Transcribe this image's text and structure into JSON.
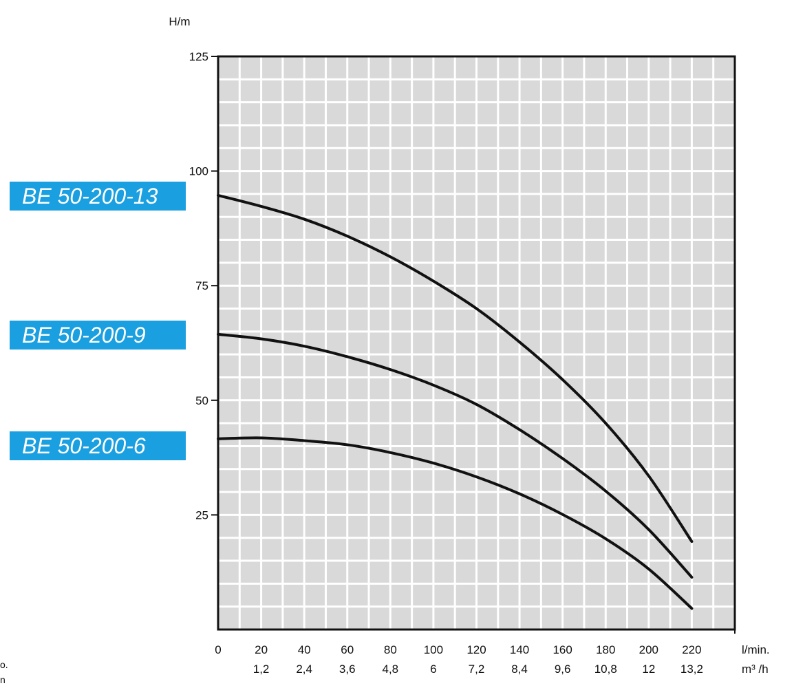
{
  "chart_data": {
    "type": "line",
    "ylabel": "H/m",
    "xlabel": "l/min.",
    "xlabel2": "m³ /h",
    "x_ticks": [
      0,
      20,
      40,
      60,
      80,
      100,
      120,
      140,
      160,
      180,
      200,
      220
    ],
    "x_ticks_labels": [
      "0",
      "20",
      "40",
      "60",
      "80",
      "100",
      "120",
      "140",
      "160",
      "180",
      "200",
      "220"
    ],
    "x2_ticks_labels": [
      "",
      "1,2",
      "2,4",
      "3,6",
      "4,8",
      "6",
      "7,2",
      "8,4",
      "9,6",
      "10,8",
      "12",
      "13,2"
    ],
    "y_ticks": [
      25,
      50,
      75,
      100,
      125
    ],
    "y_ticks_labels": [
      "25",
      "50",
      "75",
      "100",
      "125"
    ],
    "xlim": [
      0,
      240
    ],
    "ylim": [
      0,
      125
    ],
    "grid": true,
    "series": [
      {
        "name": "BE 50-200-13",
        "x": [
          0,
          20,
          40,
          60,
          80,
          100,
          120,
          140,
          160,
          180,
          200,
          220
        ],
        "y": [
          94.7,
          92.3,
          89.5,
          85.8,
          81.3,
          76.0,
          70.0,
          62.7,
          54.5,
          45.0,
          33.5,
          19.2
        ]
      },
      {
        "name": "BE 50-200-9",
        "x": [
          0,
          20,
          40,
          60,
          80,
          100,
          120,
          140,
          160,
          180,
          200,
          220
        ],
        "y": [
          64.4,
          63.4,
          61.8,
          59.5,
          56.7,
          53.3,
          49.1,
          43.6,
          37.3,
          30.2,
          21.8,
          11.4
        ]
      },
      {
        "name": "BE 50-200-6",
        "x": [
          0,
          20,
          40,
          60,
          80,
          100,
          120,
          140,
          160,
          180,
          200,
          220
        ],
        "y": [
          41.6,
          41.8,
          41.2,
          40.3,
          38.6,
          36.3,
          33.3,
          29.6,
          25.1,
          19.8,
          13.2,
          4.6
        ]
      }
    ]
  },
  "colors": {
    "plot_bg": "#d9d9d9",
    "grid": "#ffffff",
    "curve": "#111111",
    "label_bg": "#1a9fe0",
    "label_text": "#ffffff"
  },
  "stray_text": [
    "o.",
    "n"
  ]
}
